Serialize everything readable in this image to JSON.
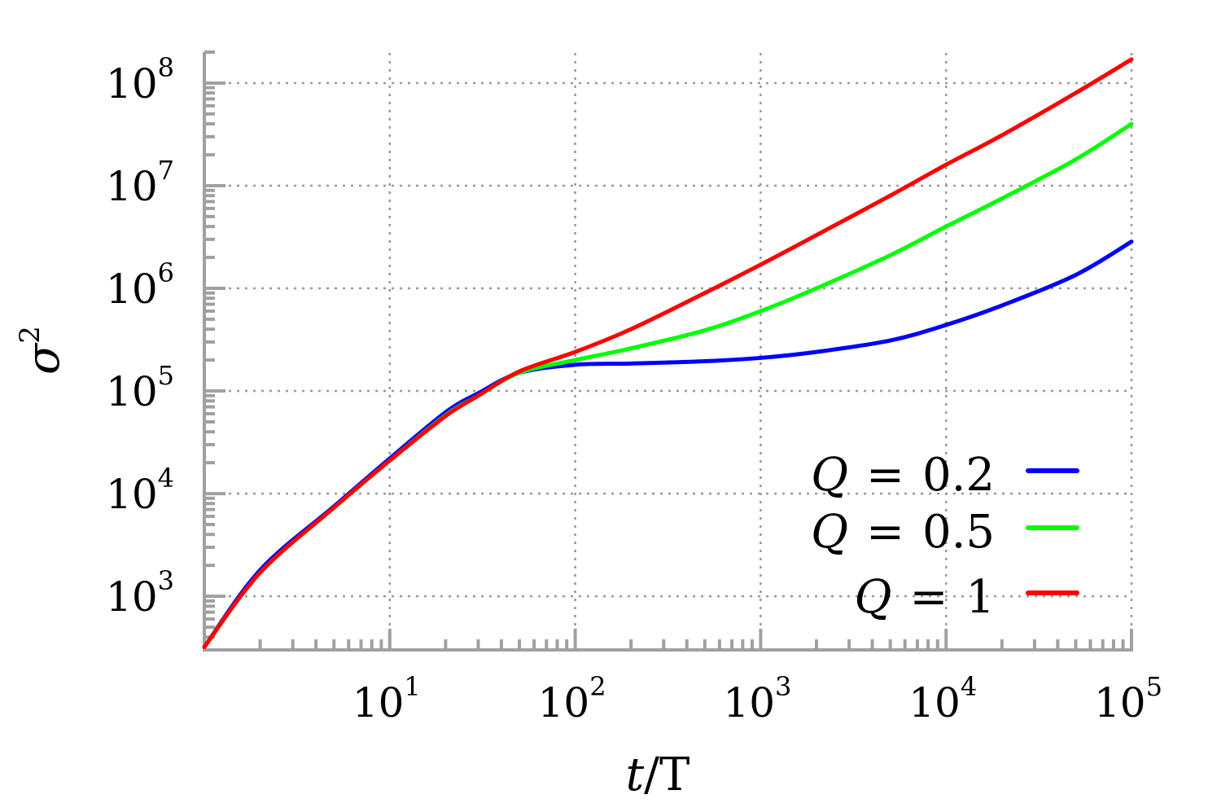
{
  "chart_data": {
    "type": "line",
    "title": "",
    "xlabel": {
      "italic": "t",
      "rest": "/T"
    },
    "ylabel": {
      "base": "σ",
      "exp": "2"
    },
    "xscale": "log",
    "yscale": "log",
    "xlim": [
      1,
      100000
    ],
    "ylim": [
      300,
      200000000
    ],
    "grid": true,
    "legend_position": "bottom-right",
    "x_ticks": [
      {
        "base": "10",
        "exp": "1",
        "value": 10
      },
      {
        "base": "10",
        "exp": "2",
        "value": 100
      },
      {
        "base": "10",
        "exp": "3",
        "value": 1000
      },
      {
        "base": "10",
        "exp": "4",
        "value": 10000
      },
      {
        "base": "10",
        "exp": "5",
        "value": 100000
      }
    ],
    "y_ticks": [
      {
        "base": "10",
        "exp": "3",
        "value": 1000
      },
      {
        "base": "10",
        "exp": "4",
        "value": 10000
      },
      {
        "base": "10",
        "exp": "5",
        "value": 100000
      },
      {
        "base": "10",
        "exp": "6",
        "value": 1000000
      },
      {
        "base": "10",
        "exp": "7",
        "value": 10000000
      },
      {
        "base": "10",
        "exp": "8",
        "value": 100000000
      }
    ],
    "x": [
      1,
      2,
      5,
      10,
      20,
      30,
      50,
      100,
      200,
      500,
      1000,
      2000,
      5000,
      10000,
      20000,
      50000,
      100000
    ],
    "series": [
      {
        "name": "Q = 0.2",
        "legend": {
          "var": "Q",
          "op": "=",
          "val": "0.2"
        },
        "color": "#0000ff",
        "values": [
          320,
          1800,
          7500,
          22000,
          62000,
          95000,
          150000,
          180000,
          185000,
          195000,
          210000,
          240000,
          310000,
          440000,
          680000,
          1350000,
          2850000
        ]
      },
      {
        "name": "Q = 0.5",
        "legend": {
          "var": "Q",
          "op": "=",
          "val": "0.5"
        },
        "color": "#00ff00",
        "values": [
          320,
          1700,
          7300,
          21000,
          58000,
          90000,
          150000,
          200000,
          260000,
          390000,
          600000,
          1000000,
          2100000,
          4000000,
          7500000,
          18000000,
          40000000
        ]
      },
      {
        "name": "Q = 1",
        "legend": {
          "var": "Q",
          "op": "=",
          "val": "1"
        },
        "color": "#ff0000",
        "values": [
          320,
          1700,
          7300,
          21000,
          57000,
          90000,
          155000,
          240000,
          400000,
          900000,
          1700000,
          3300000,
          8000000,
          16000000,
          31000000,
          80000000,
          170000000
        ]
      }
    ]
  }
}
